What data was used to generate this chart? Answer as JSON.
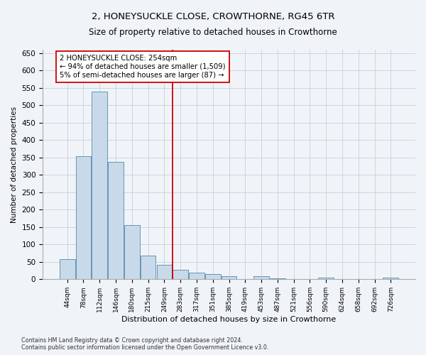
{
  "title": "2, HONEYSUCKLE CLOSE, CROWTHORNE, RG45 6TR",
  "subtitle": "Size of property relative to detached houses in Crowthorne",
  "xlabel": "Distribution of detached houses by size in Crowthorne",
  "ylabel": "Number of detached properties",
  "bar_color": "#c8daea",
  "bar_edge_color": "#5588aa",
  "background_color": "#f0f4f8",
  "grid_color": "#c8d0dc",
  "categories": [
    "44sqm",
    "78sqm",
    "112sqm",
    "146sqm",
    "180sqm",
    "215sqm",
    "249sqm",
    "283sqm",
    "317sqm",
    "351sqm",
    "385sqm",
    "419sqm",
    "453sqm",
    "487sqm",
    "521sqm",
    "556sqm",
    "590sqm",
    "624sqm",
    "658sqm",
    "692sqm",
    "726sqm"
  ],
  "values": [
    57,
    354,
    540,
    337,
    155,
    68,
    42,
    27,
    20,
    15,
    8,
    0,
    9,
    3,
    0,
    0,
    4,
    0,
    0,
    0,
    4
  ],
  "vline_x": 6.5,
  "vline_color": "#cc0000",
  "annotation_text": "2 HONEYSUCKLE CLOSE: 254sqm\n← 94% of detached houses are smaller (1,509)\n5% of semi-detached houses are larger (87) →",
  "annotation_box_color": "#ffffff",
  "annotation_box_edge_color": "#cc0000",
  "ylim": [
    0,
    660
  ],
  "yticks": [
    0,
    50,
    100,
    150,
    200,
    250,
    300,
    350,
    400,
    450,
    500,
    550,
    600,
    650
  ],
  "title_fontsize": 9.5,
  "subtitle_fontsize": 8.5,
  "footnote1": "Contains HM Land Registry data © Crown copyright and database right 2024.",
  "footnote2": "Contains public sector information licensed under the Open Government Licence v3.0."
}
